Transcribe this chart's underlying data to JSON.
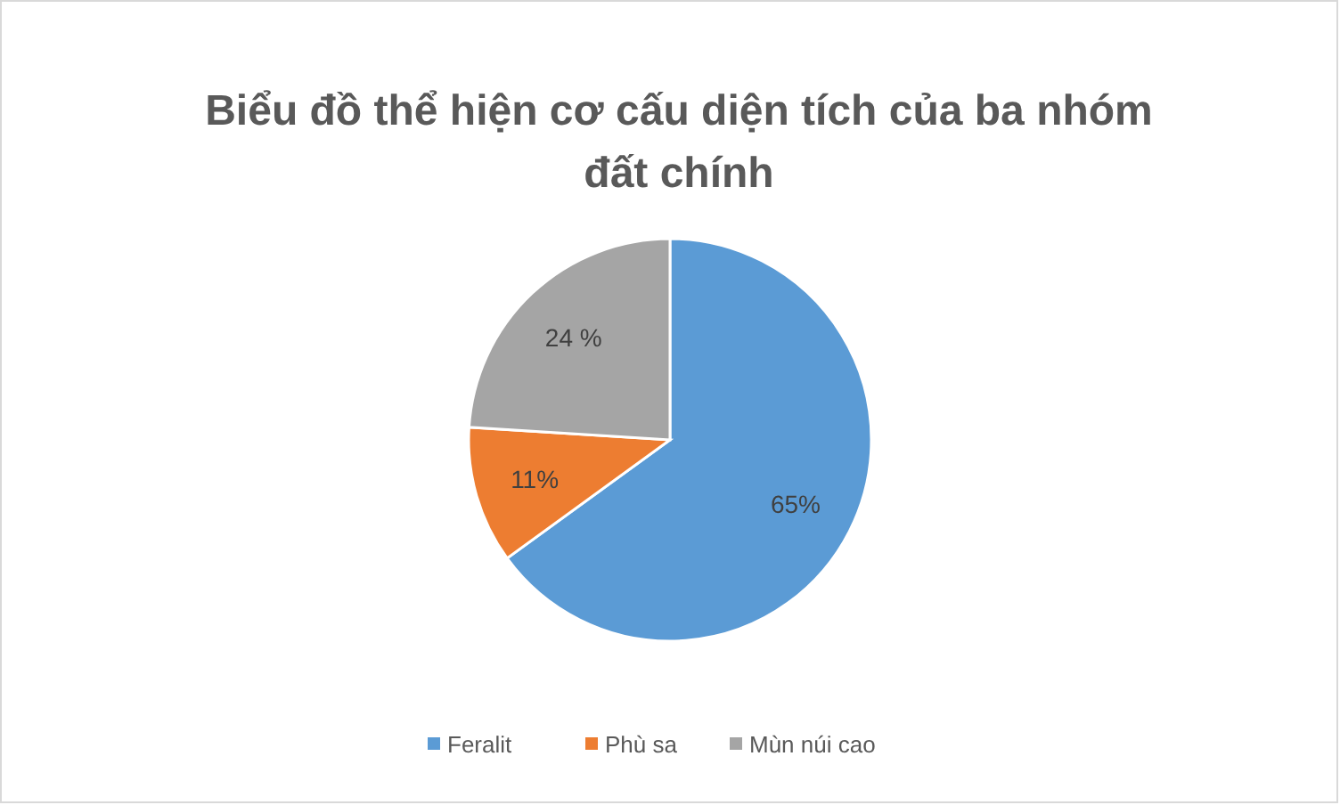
{
  "chart_data": {
    "type": "pie",
    "title": "Biểu đồ thể hiện cơ cấu diện tích của ba nhóm đất chính",
    "categories": [
      "Feralit",
      "Phù sa",
      "Mùn núi cao"
    ],
    "values": [
      65,
      11,
      24
    ],
    "colors": [
      "#5b9bd5",
      "#ed7d31",
      "#a5a5a5"
    ],
    "value_labels": [
      "65%",
      "11%",
      "24 %"
    ],
    "legend": "bottom"
  }
}
